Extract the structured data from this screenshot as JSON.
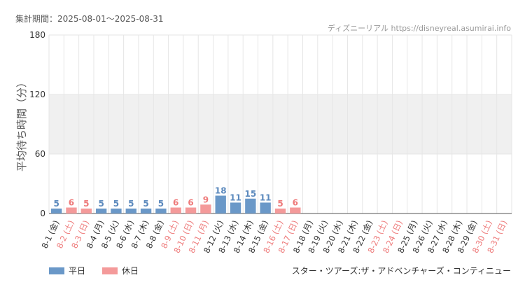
{
  "header": {
    "period": "集計期間：2025-08-01～2025-08-31",
    "source": "ディズニーリアル https://disneyreal.asumirai.info"
  },
  "footer": {
    "attraction": "スター・ツアーズ:ザ・アドベンチャーズ・コンティニュー"
  },
  "colors": {
    "weekday": "#6a98c8",
    "holiday": "#f49a9a",
    "weekday_text": "#5b89bd",
    "holiday_text": "#ee7a7a",
    "band": "#f0f0f0",
    "grid": "#e6e6e6"
  },
  "chart_data": {
    "type": "bar",
    "ylabel": "平均待ち時間（分）",
    "ylim": [
      0,
      180
    ],
    "yticks": [
      0,
      60,
      120,
      180
    ],
    "grid": true,
    "shaded_bands": [
      [
        60,
        120
      ]
    ],
    "legend_position": "bottom-left",
    "series": [
      {
        "name": "平日",
        "kind": "weekday"
      },
      {
        "name": "休日",
        "kind": "holiday"
      }
    ],
    "categories": [
      "8-1 (金)",
      "8-2 (土)",
      "8-3 (日)",
      "8-4 (月)",
      "8-5 (火)",
      "8-6 (水)",
      "8-7 (木)",
      "8-8 (金)",
      "8-9 (土)",
      "8-10 (日)",
      "8-11 (月)",
      "8-12 (火)",
      "8-13 (水)",
      "8-14 (木)",
      "8-15 (金)",
      "8-16 (土)",
      "8-17 (日)",
      "8-18 (月)",
      "8-19 (火)",
      "8-20 (水)",
      "8-21 (木)",
      "8-22 (金)",
      "8-23 (土)",
      "8-24 (日)",
      "8-25 (月)",
      "8-26 (火)",
      "8-27 (水)",
      "8-28 (木)",
      "8-29 (金)",
      "8-30 (土)",
      "8-31 (日)"
    ],
    "day_type": [
      "weekday",
      "holiday",
      "holiday",
      "weekday",
      "weekday",
      "weekday",
      "weekday",
      "weekday",
      "holiday",
      "holiday",
      "holiday",
      "weekday",
      "weekday",
      "weekday",
      "weekday",
      "holiday",
      "holiday",
      "weekday",
      "weekday",
      "weekday",
      "weekday",
      "weekday",
      "holiday",
      "holiday",
      "weekday",
      "weekday",
      "weekday",
      "weekday",
      "weekday",
      "holiday",
      "holiday"
    ],
    "values": [
      5,
      6,
      5,
      5,
      5,
      5,
      5,
      5,
      6,
      6,
      9,
      18,
      11,
      15,
      11,
      5,
      6,
      null,
      null,
      null,
      null,
      null,
      null,
      null,
      null,
      null,
      null,
      null,
      null,
      null,
      null
    ]
  }
}
